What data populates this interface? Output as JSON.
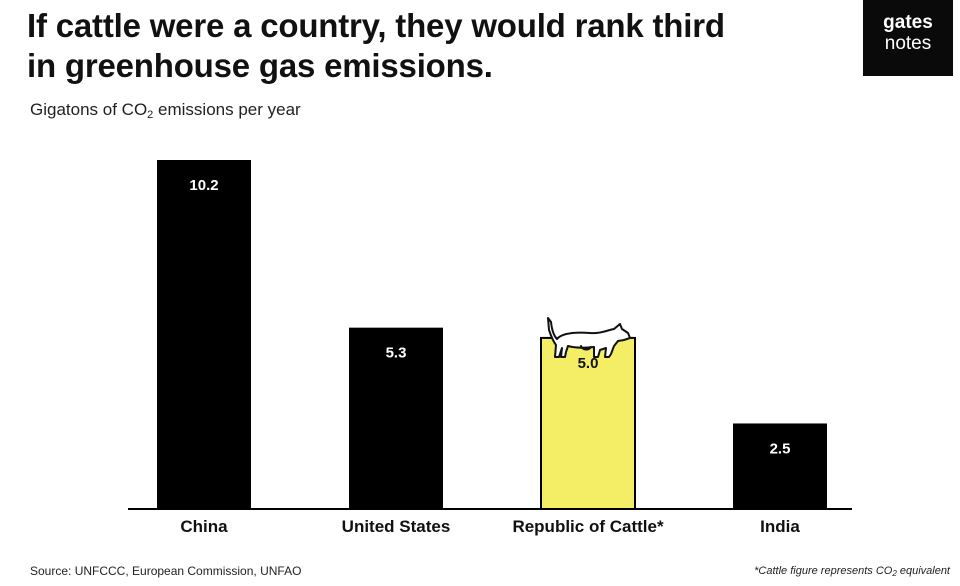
{
  "title": {
    "line1": "If cattle were a country, they would rank third",
    "line2": "in greenhouse gas emissions."
  },
  "subtitle": {
    "prefix": "Gigatons of CO",
    "sub": "2",
    "suffix": " emissions per year"
  },
  "brand": {
    "line1": "gates",
    "line2": "notes"
  },
  "source": "Source: UNFCCC, European Commission, UNFAO",
  "footnote": {
    "prefix": "*Cattle figure represents CO",
    "sub": "2",
    "suffix": " equivalent"
  },
  "colors": {
    "bar": "#000000",
    "highlight": "#f4ee66",
    "label_on_bar": "#ffffff",
    "label_on_highlight": "#111111"
  },
  "icons": {
    "highlight_marker": "cow-icon"
  },
  "chart_data": {
    "type": "bar",
    "categories": [
      "China",
      "United States",
      "Republic of Cattle*",
      "India"
    ],
    "values": [
      10.2,
      5.3,
      5.0,
      2.5
    ],
    "value_labels": [
      "10.2",
      "5.3",
      "5.0",
      "2.5"
    ],
    "highlight_index": 2,
    "title": "If cattle were a country, they would rank third in greenhouse gas emissions.",
    "xlabel": "",
    "ylabel": "Gigatons of CO2 emissions per year",
    "ylim": [
      0,
      10.2
    ],
    "grid": false,
    "legend": "none"
  }
}
